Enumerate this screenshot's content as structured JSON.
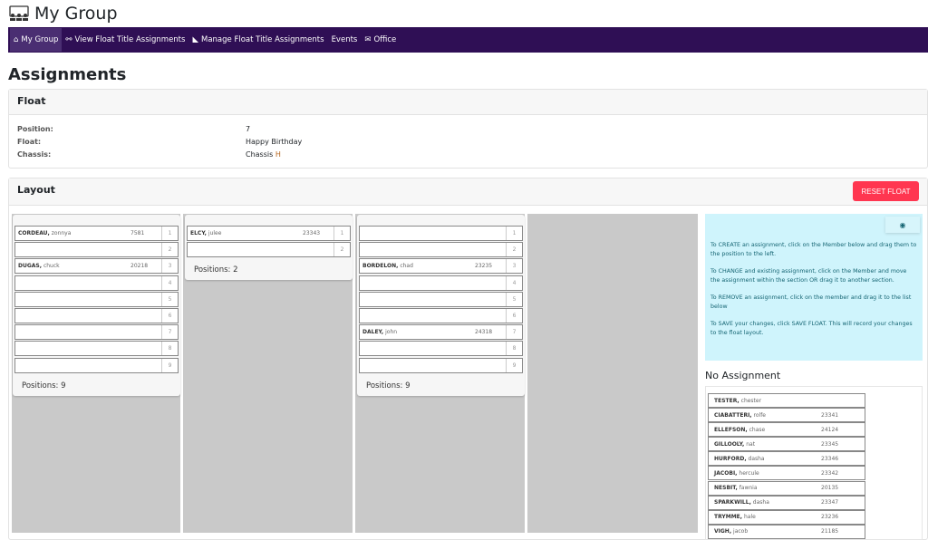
{
  "header": {
    "title": "My Group",
    "icon": "group-icon"
  },
  "nav": [
    {
      "label": "My Group",
      "icon": "home-icon"
    },
    {
      "label": "View Float Title Assignments",
      "icon": "binoculars-icon"
    },
    {
      "label": "Manage Float Title Assignments",
      "icon": "ruler-icon"
    },
    {
      "label": "Events"
    },
    {
      "label": "Office",
      "icon": "envelope-icon"
    }
  ],
  "page_title": "Assignments",
  "float": {
    "title": "Float",
    "rows": [
      {
        "k": "Position:",
        "v": "7"
      },
      {
        "k": "Float:",
        "v": "Happy Birthday"
      },
      {
        "k": "Chassis:",
        "v": "Chassis ",
        "v2": "H"
      }
    ]
  },
  "layout": {
    "title": "Layout",
    "reset": "RESET FLOAT",
    "columns": [
      {
        "positions_label": "Positions: 9",
        "rows": [
          {
            "n": "1",
            "last": "CORDEAU,",
            "first": "zonnya",
            "id": "7581"
          },
          {
            "n": "2"
          },
          {
            "n": "3",
            "last": "DUGAS,",
            "first": "chuck",
            "id": "20218"
          },
          {
            "n": "4"
          },
          {
            "n": "5"
          },
          {
            "n": "6"
          },
          {
            "n": "7"
          },
          {
            "n": "8"
          },
          {
            "n": "9"
          }
        ]
      },
      {
        "positions_label": "Positions: 2",
        "rows": [
          {
            "n": "1",
            "last": "ELCY,",
            "first": "julee",
            "id": "23343"
          },
          {
            "n": "2"
          }
        ]
      },
      {
        "positions_label": "Positions: 9",
        "rows": [
          {
            "n": "1"
          },
          {
            "n": "2"
          },
          {
            "n": "3",
            "last": "BORDELON,",
            "first": "chad",
            "id": "23235"
          },
          {
            "n": "4"
          },
          {
            "n": "5"
          },
          {
            "n": "6"
          },
          {
            "n": "7",
            "last": "DALEY,",
            "first": "john",
            "id": "24318"
          },
          {
            "n": "8"
          },
          {
            "n": "9"
          }
        ]
      }
    ]
  },
  "info": {
    "toggle_icon": "eye-slash-icon",
    "lines": [
      "To CREATE an assignment, click on the Member below and drag them to the position to the left.",
      "To CHANGE and existing assignment, click on the Member and move the assignment within the section OR drag it to another section.",
      "To REMOVE an assignment, click on the member and drag it to the list below",
      "To SAVE your changes, click SAVE FLOAT. This will record your changes to the float layout."
    ]
  },
  "no_assignment": {
    "title": "No Assignment",
    "members": [
      {
        "last": "TESTER,",
        "first": "chester",
        "id": ""
      },
      {
        "last": "CIABATTERI,",
        "first": "rolfe",
        "id": "23341"
      },
      {
        "last": "ELLEFSON,",
        "first": "chase",
        "id": "24124"
      },
      {
        "last": "GILLOOLY,",
        "first": "nat",
        "id": "23345"
      },
      {
        "last": "HURFORD,",
        "first": "dasha",
        "id": "23346"
      },
      {
        "last": "JACOBI,",
        "first": "hercule",
        "id": "23342"
      },
      {
        "last": "NESBIT,",
        "first": "fawnia",
        "id": "20135"
      },
      {
        "last": "SPARKWILL,",
        "first": "dasha",
        "id": "23347"
      },
      {
        "last": "TRYMME,",
        "first": "hale",
        "id": "23236"
      },
      {
        "last": "VIGH,",
        "first": "jacob",
        "id": "21185"
      }
    ]
  },
  "colors": {
    "nav": "#2f0f55",
    "reset": "#ff3650",
    "info_bg": "#cff4fc",
    "chassis_accent": "#b5651d"
  }
}
